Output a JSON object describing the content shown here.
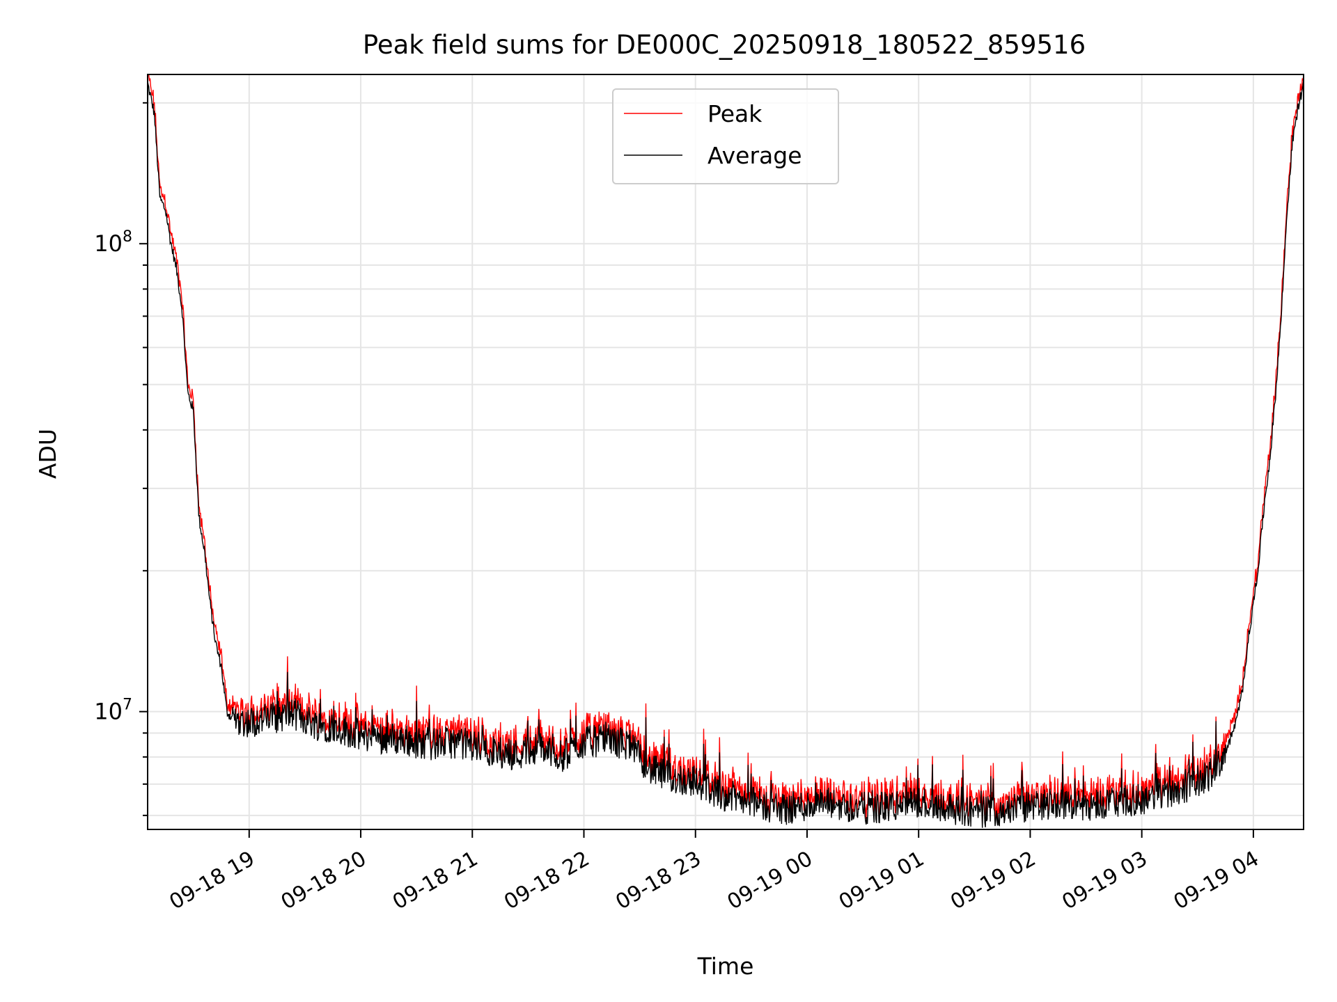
{
  "chart_data": {
    "type": "line",
    "title": "Peak field sums for DE000C_20250918_180522_859516",
    "xlabel": "Time",
    "ylabel": "ADU",
    "yscale": "log",
    "ylim": [
      5600000,
      230000000
    ],
    "xlim_hours": [
      18.09,
      28.45
    ],
    "grid": true,
    "legend_position": "upper center",
    "x_ticks": [
      {
        "hour": 19,
        "label": "09-18 19"
      },
      {
        "hour": 20,
        "label": "09-18 20"
      },
      {
        "hour": 21,
        "label": "09-18 21"
      },
      {
        "hour": 22,
        "label": "09-18 22"
      },
      {
        "hour": 23,
        "label": "09-18 23"
      },
      {
        "hour": 24,
        "label": "09-19 00"
      },
      {
        "hour": 25,
        "label": "09-19 01"
      },
      {
        "hour": 26,
        "label": "09-19 02"
      },
      {
        "hour": 27,
        "label": "09-19 03"
      },
      {
        "hour": 28,
        "label": "09-19 04"
      }
    ],
    "y_ticks": [
      {
        "value": 10000000,
        "base": "10",
        "exp": "7"
      },
      {
        "value": 100000000,
        "base": "10",
        "exp": "8"
      }
    ],
    "series": [
      {
        "name": "Peak",
        "color": "#ff0000"
      },
      {
        "name": "Average",
        "color": "#000000"
      }
    ],
    "x_hours": [
      18.09,
      18.15,
      18.2,
      18.25,
      18.3,
      18.35,
      18.4,
      18.45,
      18.5,
      18.55,
      18.6,
      18.65,
      18.7,
      18.75,
      18.8,
      18.83,
      18.9,
      19.0,
      19.2,
      19.4,
      19.6,
      19.8,
      20.0,
      20.2,
      20.4,
      20.6,
      20.8,
      21.0,
      21.2,
      21.4,
      21.6,
      21.8,
      22.0,
      22.2,
      22.4,
      22.6,
      22.8,
      23.0,
      23.2,
      23.4,
      23.6,
      23.8,
      24.0,
      24.2,
      24.4,
      24.6,
      24.8,
      25.0,
      25.2,
      25.4,
      25.6,
      25.8,
      26.0,
      26.2,
      26.4,
      26.6,
      26.8,
      27.0,
      27.2,
      27.4,
      27.6,
      27.7,
      27.8,
      27.85,
      27.9,
      27.95,
      28.0,
      28.05,
      28.1,
      28.15,
      28.2,
      28.25,
      28.3,
      28.35,
      28.4,
      28.45
    ],
    "average_values": [
      220000000,
      190000000,
      125000000,
      118000000,
      100000000,
      88000000,
      72000000,
      48000000,
      44000000,
      26000000,
      22000000,
      17000000,
      14000000,
      12500000,
      10000000,
      9800000,
      9600000,
      9500000,
      9700000,
      9900000,
      9400000,
      9200000,
      8900000,
      8800000,
      8700000,
      8500000,
      8600000,
      8500000,
      8200000,
      8100000,
      8400000,
      8000000,
      8600000,
      8700000,
      8500000,
      7500000,
      7200000,
      7100000,
      6700000,
      6500000,
      6300000,
      6200000,
      6300000,
      6350000,
      6250000,
      6200000,
      6300000,
      6400000,
      6300000,
      6150000,
      6100000,
      6200000,
      6250000,
      6400000,
      6300000,
      6350000,
      6400000,
      6500000,
      6700000,
      6900000,
      7300000,
      7800000,
      8800000,
      9600000,
      11000000,
      14000000,
      17000000,
      21000000,
      28000000,
      35000000,
      48000000,
      70000000,
      115000000,
      165000000,
      195000000,
      220000000
    ]
  }
}
